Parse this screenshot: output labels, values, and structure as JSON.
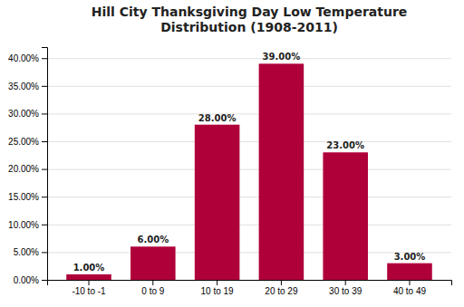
{
  "chart_data": {
    "type": "bar",
    "title": "Hill City Thanksgiving Day Low Temperature\nDistribution (1908-2011)",
    "categories": [
      "-10 to -1",
      "0 to 9",
      "10 to 19",
      "20 to 29",
      "30 to 39",
      "40 to 49"
    ],
    "values": [
      0.01,
      0.06,
      0.28,
      0.39,
      0.23,
      0.03
    ],
    "value_labels": [
      "1.00%",
      "6.00%",
      "28.00%",
      "39.00%",
      "23.00%",
      "3.00%"
    ],
    "data_labels": true,
    "color": "#B0003A",
    "ylim": [
      0,
      0.42
    ],
    "yticks": [
      {
        "value": 0.0,
        "label": "0.00%"
      },
      {
        "value": 0.05,
        "label": "5.00%"
      },
      {
        "value": 0.1,
        "label": "10.00%"
      },
      {
        "value": 0.15,
        "label": "15.00%"
      },
      {
        "value": 0.2,
        "label": "20.00%"
      },
      {
        "value": 0.25,
        "label": "25.00%"
      },
      {
        "value": 0.3,
        "label": "30.00%"
      },
      {
        "value": 0.35,
        "label": "35.00%"
      },
      {
        "value": 0.4,
        "label": "40.00%"
      }
    ],
    "grid": true
  }
}
